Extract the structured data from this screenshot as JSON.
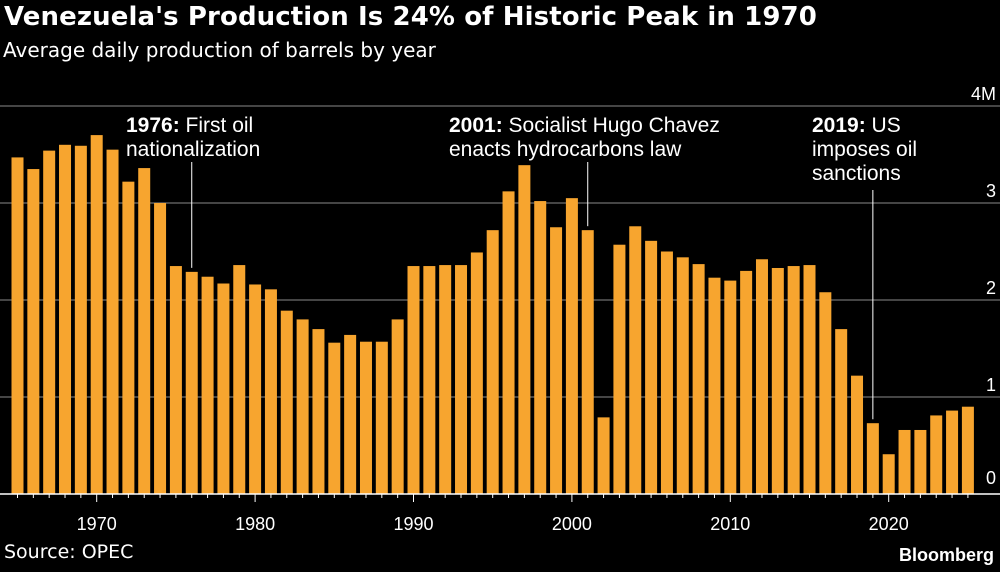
{
  "header": {
    "title": "Venezuela's Production Is 24% of Historic Peak in 1970",
    "subtitle": "Average daily production of barrels by year"
  },
  "footer": {
    "source": "Source: OPEC",
    "brand": "Bloomberg"
  },
  "colors": {
    "bar": "#F7A52F",
    "background": "#000000",
    "gridline": "#8a8a8a",
    "text": "#ffffff"
  },
  "chart_data": {
    "type": "bar",
    "title": "Venezuela's Production Is 24% of Historic Peak in 1970",
    "subtitle": "Average daily production of barrels by year",
    "xlabel": "",
    "ylabel": "",
    "unit": "M",
    "ylim": [
      0,
      4
    ],
    "yticks": [
      {
        "value": 0,
        "label": "0"
      },
      {
        "value": 1,
        "label": "1"
      },
      {
        "value": 2,
        "label": "2"
      },
      {
        "value": 3,
        "label": "3"
      },
      {
        "value": 4,
        "label": "4M"
      }
    ],
    "xticks": [
      {
        "value": 1970,
        "label": "1970"
      },
      {
        "value": 1980,
        "label": "1980"
      },
      {
        "value": 1990,
        "label": "1990"
      },
      {
        "value": 2000,
        "label": "2000"
      },
      {
        "value": 2010,
        "label": "2010"
      },
      {
        "value": 2020,
        "label": "2020"
      }
    ],
    "grid": true,
    "categories": [
      1965,
      1966,
      1967,
      1968,
      1969,
      1970,
      1971,
      1972,
      1973,
      1974,
      1975,
      1976,
      1977,
      1978,
      1979,
      1980,
      1981,
      1982,
      1983,
      1984,
      1985,
      1986,
      1987,
      1988,
      1989,
      1990,
      1991,
      1992,
      1993,
      1994,
      1995,
      1996,
      1997,
      1998,
      1999,
      2000,
      2001,
      2002,
      2003,
      2004,
      2005,
      2006,
      2007,
      2008,
      2009,
      2010,
      2011,
      2012,
      2013,
      2014,
      2015,
      2016,
      2017,
      2018,
      2019,
      2020,
      2021,
      2022,
      2023,
      2024,
      2025
    ],
    "values": [
      3.47,
      3.35,
      3.54,
      3.6,
      3.59,
      3.7,
      3.55,
      3.22,
      3.36,
      3.0,
      2.35,
      2.29,
      2.24,
      2.17,
      2.36,
      2.16,
      2.11,
      1.89,
      1.8,
      1.7,
      1.56,
      1.64,
      1.57,
      1.57,
      1.8,
      2.35,
      2.35,
      2.36,
      2.36,
      2.49,
      2.72,
      3.12,
      3.39,
      3.02,
      2.75,
      3.05,
      2.72,
      0.79,
      2.57,
      2.76,
      2.61,
      2.5,
      2.44,
      2.37,
      2.23,
      2.2,
      2.3,
      2.42,
      2.33,
      2.35,
      2.36,
      2.08,
      1.7,
      1.22,
      0.73,
      0.41,
      0.66,
      0.66,
      0.81,
      0.86,
      0.9
    ],
    "annotations": [
      {
        "year": 1976,
        "bold": "1976:",
        "lines": [
          "First oil",
          "nationalization"
        ]
      },
      {
        "year": 2001,
        "bold": "2001:",
        "lines": [
          "Socialist Hugo Chavez",
          "enacts hydrocarbons law"
        ]
      },
      {
        "year": 2019,
        "bold": "2019:",
        "lines": [
          "US",
          "imposes oil",
          "sanctions"
        ]
      }
    ]
  }
}
